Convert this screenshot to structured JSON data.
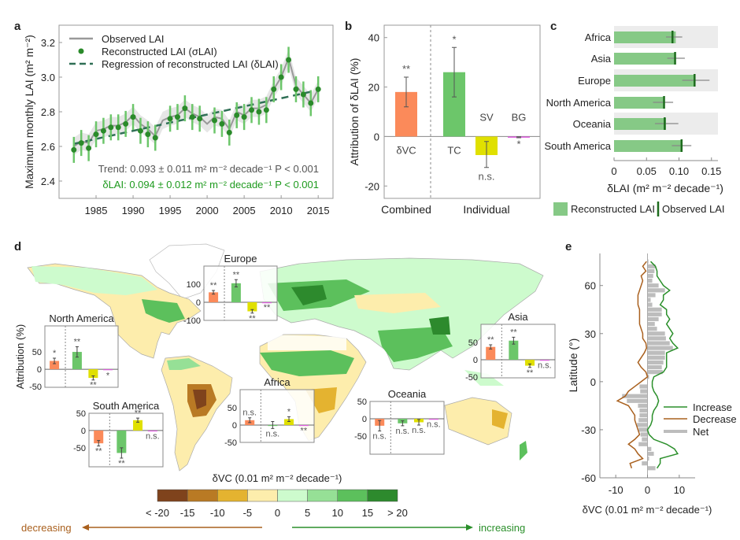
{
  "colors": {
    "dVC": "#fb8a5a",
    "TC": "#6cc66a",
    "SV": "#e0e000",
    "BG": "#e060e0",
    "reconstructed": "#2a8a2a",
    "errorbar": "#6cc66a",
    "regression": "#2f6f55",
    "observed": "#999999",
    "band": "#e6e6e6",
    "increase": "#2a8f2a",
    "decrease": "#a9601e",
    "net": "#bdbdbd",
    "c_bar": "#86c986",
    "c_obs": "#1d6b1d"
  },
  "panel_labels": {
    "a": "a",
    "b": "b",
    "c": "c",
    "d": "d",
    "e": "e"
  },
  "chart_data": [
    {
      "panel": "a",
      "type": "line",
      "ylabel": "Maximum monthly LAI (m² m⁻²)",
      "xlim": [
        1980,
        2017
      ],
      "ylim": [
        2.3,
        3.3
      ],
      "xticks": [
        1985,
        1990,
        1995,
        2000,
        2005,
        2010,
        2015
      ],
      "yticks": [
        2.4,
        2.6,
        2.8,
        3.0,
        3.2
      ],
      "legend": [
        "Observed LAI",
        "Reconstructed LAI (σLAI)",
        "Regression of reconstructed LAI (δLAI)"
      ],
      "observed": {
        "x": [
          1982,
          1983,
          1984,
          1985,
          1986,
          1987,
          1988,
          1989,
          1990,
          1991,
          1992,
          1993,
          1994,
          1995,
          1996,
          1997,
          1998,
          1999,
          2000,
          2001,
          2002,
          2003,
          2004,
          2005,
          2006,
          2007,
          2008,
          2009,
          2010,
          2011,
          2012,
          2013,
          2014,
          2015
        ],
        "y": [
          2.6,
          2.63,
          2.62,
          2.69,
          2.7,
          2.72,
          2.72,
          2.74,
          2.78,
          2.73,
          2.7,
          2.66,
          2.75,
          2.77,
          2.78,
          2.82,
          2.79,
          2.77,
          2.73,
          2.77,
          2.76,
          2.7,
          2.8,
          2.78,
          2.82,
          2.82,
          2.84,
          2.93,
          3.0,
          3.11,
          2.95,
          2.9,
          2.85,
          2.93
        ],
        "uncertainty": 0.05
      },
      "reconstructed": {
        "x": [
          1982,
          1983,
          1984,
          1985,
          1986,
          1987,
          1988,
          1989,
          1990,
          1991,
          1992,
          1993,
          1995,
          1996,
          1997,
          1998,
          1999,
          2001,
          2002,
          2003,
          2004,
          2005,
          2006,
          2007,
          2008,
          2009,
          2010,
          2011,
          2012,
          2013,
          2014,
          2015
        ],
        "y": [
          2.58,
          2.62,
          2.59,
          2.67,
          2.69,
          2.71,
          2.71,
          2.73,
          2.77,
          2.69,
          2.67,
          2.65,
          2.76,
          2.77,
          2.82,
          2.77,
          2.76,
          2.75,
          2.73,
          2.68,
          2.78,
          2.77,
          2.81,
          2.8,
          2.81,
          2.93,
          3.0,
          3.1,
          2.93,
          2.9,
          2.85,
          2.93
        ],
        "error": 0.075
      },
      "regression": {
        "x": [
          1982,
          2015
        ],
        "y": [
          2.615,
          2.925
        ]
      },
      "annotations": [
        "Trend: 0.093 ± 0.011 m² m⁻² decade⁻¹  P < 0.001",
        "δLAI: 0.094 ± 0.012 m² m⁻² decade⁻¹  P < 0.001"
      ]
    },
    {
      "panel": "b",
      "type": "bar",
      "ylabel": "Attribution of δLAI (%)",
      "ylim": [
        -25,
        45
      ],
      "yticks": [
        -20,
        0,
        20,
        40
      ],
      "groups": [
        "Combined",
        "Individual"
      ],
      "categories": [
        "δVC",
        "TC",
        "SV",
        "BG"
      ],
      "values": [
        18,
        26,
        -7.5,
        -0.3
      ],
      "errors": [
        [
          12,
          24
        ],
        [
          16,
          36
        ],
        [
          -12.5,
          -2
        ],
        [
          -0.5,
          -0.1
        ]
      ],
      "significance": [
        "**",
        "*",
        "n.s.",
        "*"
      ]
    },
    {
      "panel": "c",
      "type": "bar",
      "orientation": "horizontal",
      "xlabel": "δLAI (m² m⁻² decade⁻¹)",
      "xlim": [
        0,
        0.16
      ],
      "xticks": [
        "0",
        "0.05",
        "0.10",
        "0.15"
      ],
      "categories": [
        "Africa",
        "Asia",
        "Europe",
        "North America",
        "Oceania",
        "South America"
      ],
      "reconstructed": [
        0.095,
        0.094,
        0.125,
        0.078,
        0.08,
        0.104
      ],
      "observed": [
        0.09,
        0.094,
        0.124,
        0.077,
        0.078,
        0.104
      ],
      "observed_range": [
        [
          0.08,
          0.105
        ],
        [
          0.082,
          0.109
        ],
        [
          0.105,
          0.147
        ],
        [
          0.06,
          0.091
        ],
        [
          0.063,
          0.099
        ],
        [
          0.089,
          0.119
        ]
      ],
      "legend": [
        "Reconstructed LAI",
        "Observed LAI"
      ]
    },
    {
      "panel": "d",
      "type": "heatmap",
      "ylabel": "Attribution (%)",
      "colorbar": {
        "title": "δVC (0.01 m² m⁻² decade⁻¹)",
        "ticks": [
          "< -20",
          "-15",
          "-10",
          "-5",
          "0",
          "5",
          "10",
          "15",
          "> 20"
        ],
        "colors": [
          "#7f431c",
          "#b97a24",
          "#e4b330",
          "#fdedac",
          "#cdfbcd",
          "#96e096",
          "#5cc05c",
          "#2d8a2d"
        ]
      },
      "arrows": {
        "left": "decreasing",
        "right": "increasing"
      },
      "insets": [
        {
          "title": "North America",
          "yticks": [
            "50",
            "0",
            "-50"
          ],
          "values": [
            24,
            50,
            -25,
            -2
          ],
          "errors": [
            8,
            15,
            6,
            1
          ],
          "significance": [
            "*",
            "**",
            "**",
            "*"
          ]
        },
        {
          "title": "Europe",
          "yticks": [
            "100",
            "0",
            "-100"
          ],
          "values": [
            55,
            105,
            -50,
            0
          ],
          "errors": [
            10,
            20,
            10,
            1
          ],
          "significance": [
            "**",
            "**",
            "**",
            "**"
          ]
        },
        {
          "title": "South America",
          "yticks": [
            "50",
            "0",
            "-50"
          ],
          "values": [
            -37,
            -65,
            30,
            0
          ],
          "errors": [
            8,
            15,
            6,
            1
          ],
          "significance": [
            "**",
            "**",
            "**",
            "n.s."
          ]
        },
        {
          "title": "Africa",
          "yticks": [
            "50",
            "0",
            "-50"
          ],
          "values": [
            14,
            0,
            17,
            0
          ],
          "errors": [
            7,
            10,
            7,
            1
          ],
          "significance": [
            "n.s.",
            "n.s.",
            "*",
            "**"
          ]
        },
        {
          "title": "Asia",
          "yticks": [
            "50",
            "0",
            "-50"
          ],
          "values": [
            37,
            55,
            -17,
            0
          ],
          "errors": [
            6,
            10,
            5,
            1
          ],
          "significance": [
            "**",
            "**",
            "**",
            "n.s."
          ]
        },
        {
          "title": "Oceania",
          "yticks": [
            "50",
            "0",
            "-50"
          ],
          "values": [
            -20,
            -13,
            -10,
            0
          ],
          "errors": [
            15,
            7,
            8,
            1
          ],
          "significance": [
            "n.s.",
            "n.s.",
            "n.s.",
            "n.s."
          ]
        }
      ]
    },
    {
      "panel": "e",
      "type": "line",
      "xlabel": "δVC (0.01 m² m⁻² decade⁻¹)",
      "ylabel": "Latitude (°)",
      "xlim": [
        -15,
        15
      ],
      "ylim": [
        -60,
        80
      ],
      "xticks": [
        "-10",
        "0",
        "10"
      ],
      "yticks": [
        "60",
        "30",
        "0",
        "-30",
        "-60"
      ],
      "legend": [
        "Increase",
        "Decrease",
        "Net"
      ],
      "latitude": [
        75,
        72,
        69,
        66,
        63,
        60,
        57,
        54,
        51,
        48,
        45,
        42,
        39,
        36,
        33,
        30,
        27,
        24,
        21,
        18,
        15,
        12,
        9,
        6,
        3,
        0,
        -3,
        -6,
        -9,
        -12,
        -15,
        -18,
        -21,
        -24,
        -27,
        -30,
        -33,
        -36,
        -39,
        -42,
        -45,
        -48,
        -51,
        -54
      ],
      "increase": [
        1,
        2.5,
        3,
        3,
        4,
        5,
        7,
        5,
        5,
        4,
        6,
        6,
        7,
        6,
        7,
        8,
        7,
        8,
        9.5,
        6,
        6,
        6,
        6,
        5,
        2,
        1.5,
        1.5,
        2,
        3,
        3.5,
        3,
        2,
        1.5,
        1.5,
        1,
        0,
        0.5,
        2,
        6,
        8.5,
        9.5,
        4,
        4,
        3
      ],
      "decrease": [
        -0.3,
        -1.5,
        -0.5,
        -2,
        -1.5,
        -2,
        -2.5,
        -3,
        -3,
        -3,
        -2.5,
        -2.5,
        -2.5,
        -2.5,
        -2,
        -1.5,
        -1.5,
        -0.5,
        -0.3,
        -1,
        -2,
        -3,
        -2,
        -0.5,
        0,
        -2,
        -4,
        -6,
        -7,
        -9.5,
        -6,
        -5,
        -4,
        -4,
        -3.5,
        -3,
        -2.5,
        -4,
        -6,
        -4,
        -3,
        -1.5,
        -5.5,
        -5
      ],
      "net": [
        0.3,
        2.5,
        2.2,
        1.8,
        1.5,
        3.5,
        5.5,
        2.5,
        1,
        1.5,
        4.5,
        4.5,
        3.5,
        2.3,
        3,
        5.5,
        5.8,
        7,
        8,
        5.5,
        5.5,
        5,
        4.5,
        4.8,
        0.5,
        0,
        -2.5,
        -2.3,
        -8,
        -6.5,
        -3,
        -2.5,
        -2.5,
        -2.8,
        -3.3,
        -2.8,
        -2.2,
        -1.8,
        -2.8,
        1.2,
        2,
        0.5,
        -1.8,
        2.5
      ]
    }
  ]
}
